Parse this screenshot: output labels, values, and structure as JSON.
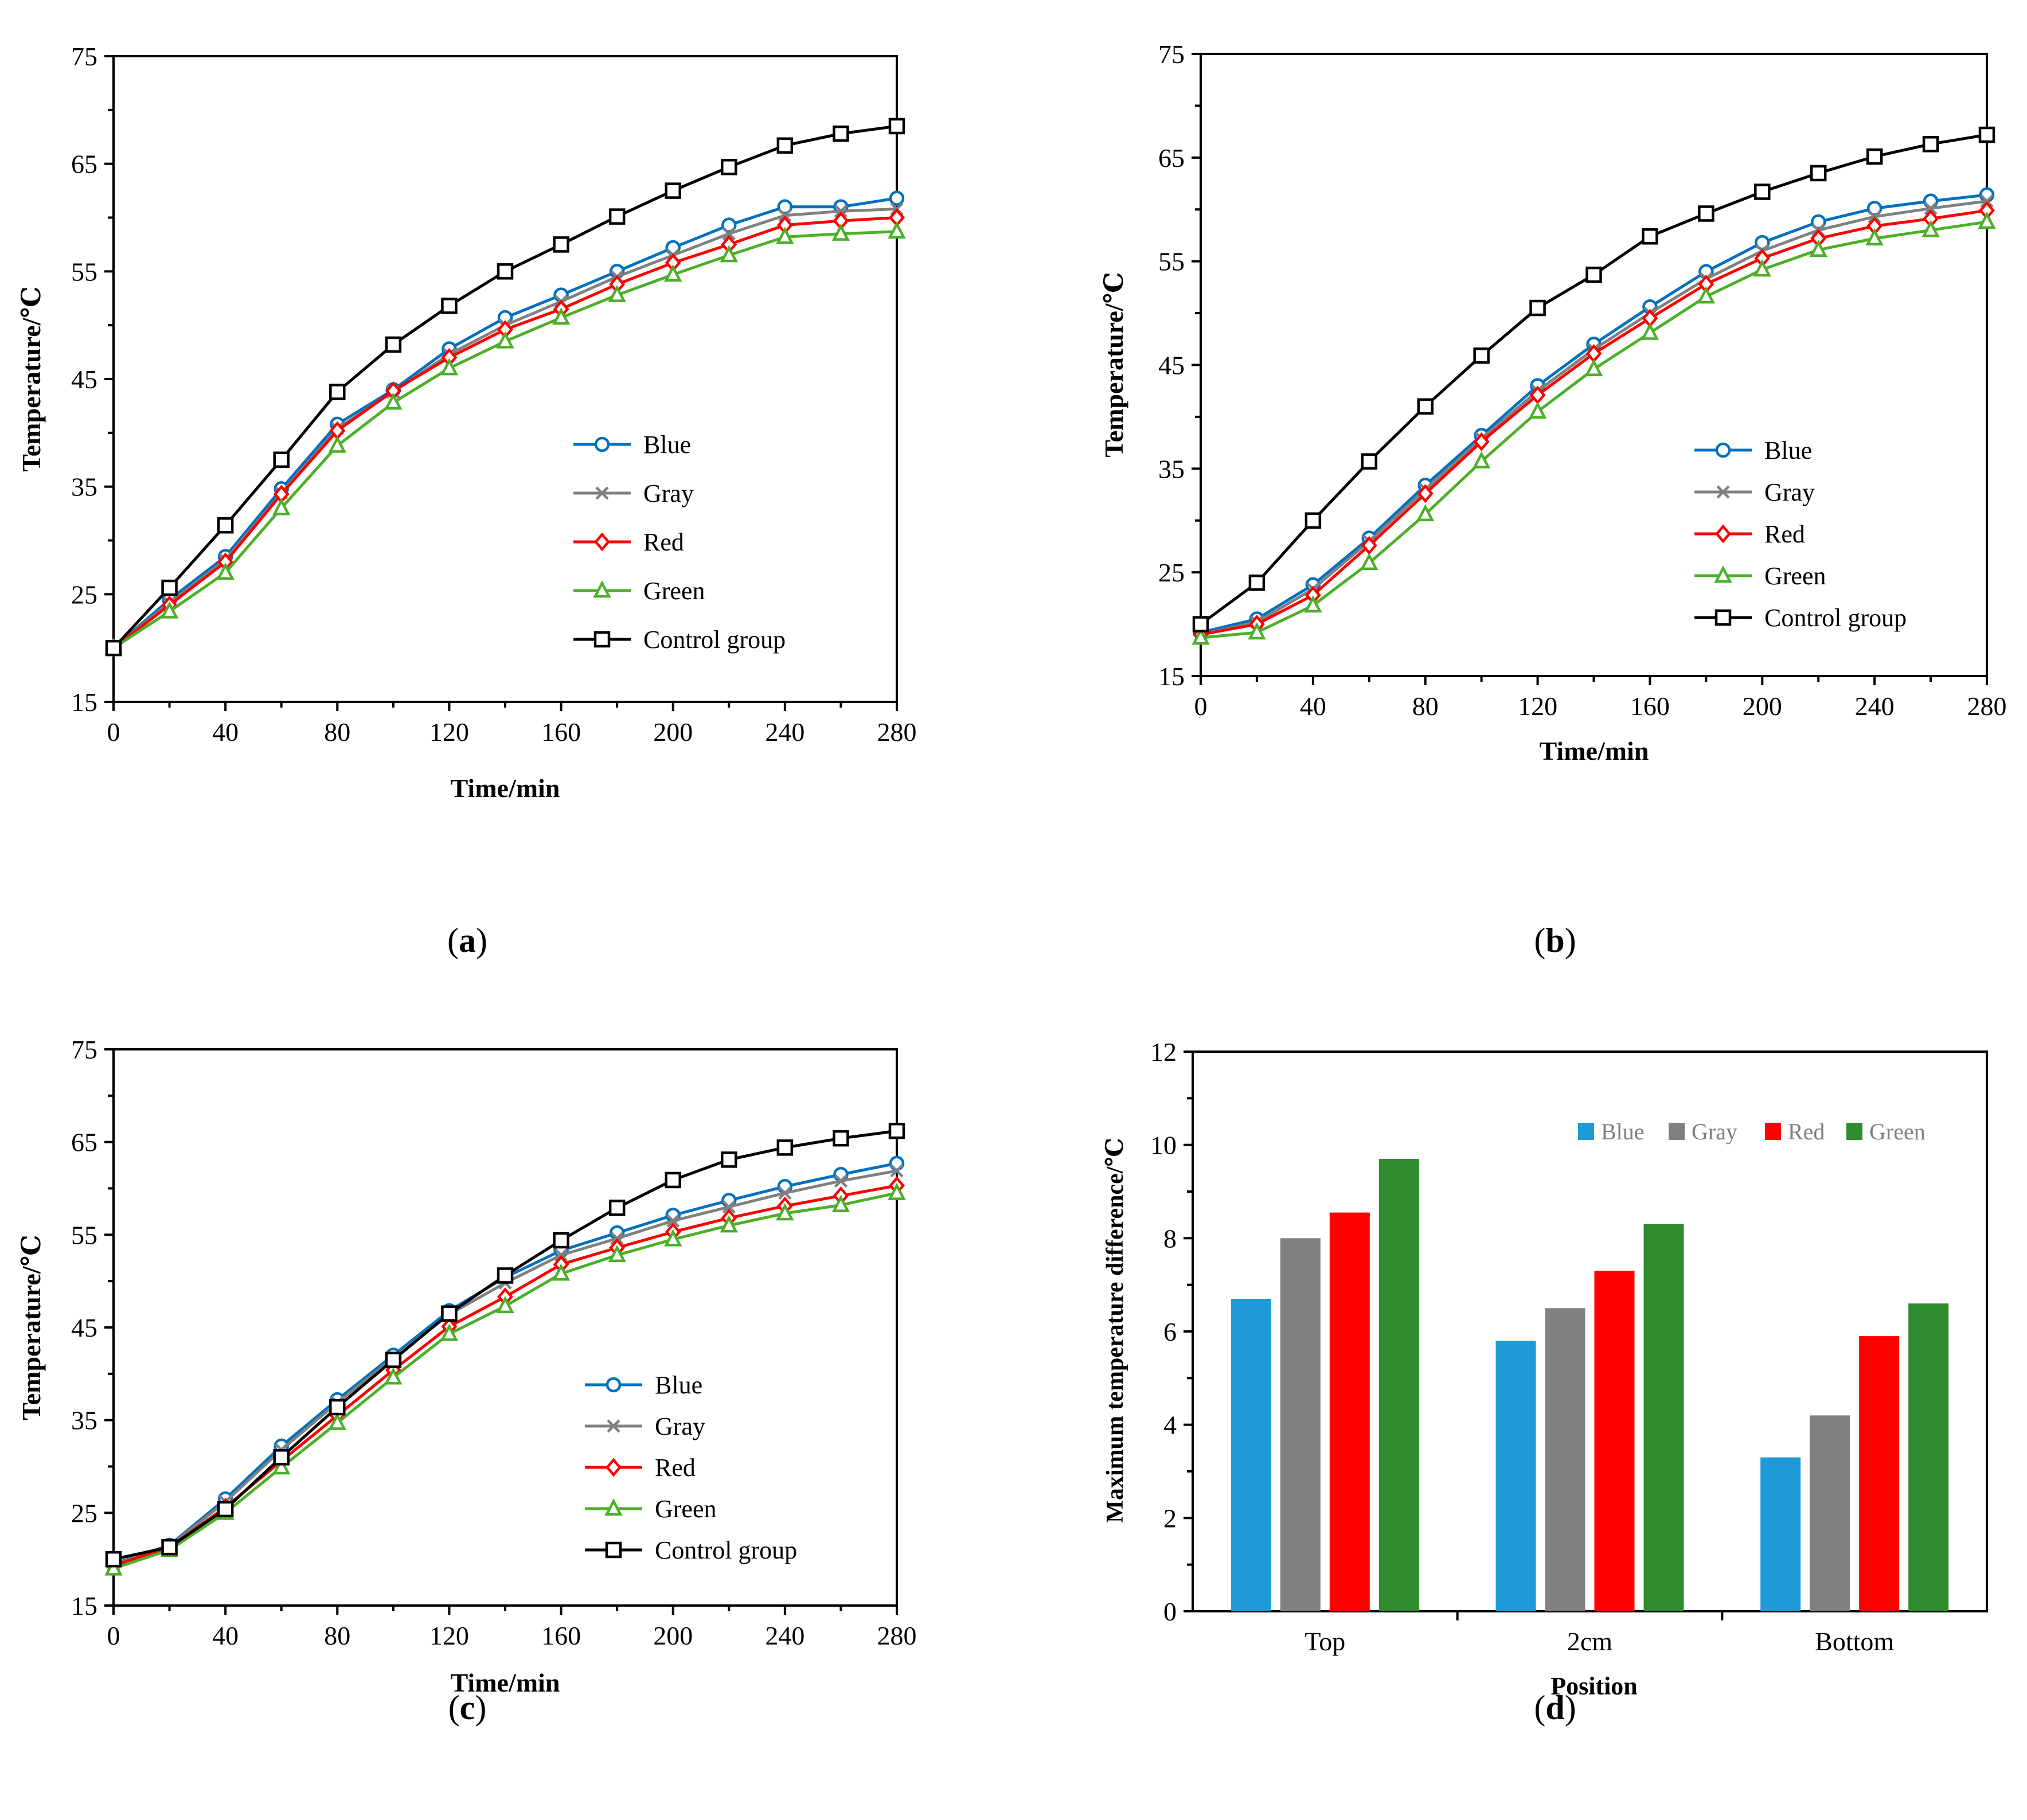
{
  "series_colors": {
    "Blue": "#0070c0",
    "Gray": "#808080",
    "Red": "#ff0000",
    "Green": "#4caf28",
    "Control group": "#000000"
  },
  "bar_colors": {
    "Blue": "#1e9bd7",
    "Gray": "#808080",
    "Red": "#ff0000",
    "Green": "#2e8b2e"
  },
  "chart_data": [
    {
      "id": "a",
      "type": "line",
      "caption": {
        "open": "(",
        "letter": "a",
        "close": ")"
      },
      "xlabel": "Time/min",
      "ylabel": "Temperature/℃",
      "xlim": [
        0,
        280
      ],
      "ylim": [
        15,
        75
      ],
      "xticks": [
        0,
        40,
        80,
        120,
        160,
        200,
        240,
        280
      ],
      "yticks": [
        15,
        25,
        35,
        45,
        55,
        65,
        75
      ],
      "x": [
        0,
        20,
        40,
        60,
        80,
        100,
        120,
        140,
        160,
        180,
        200,
        220,
        240,
        260,
        280
      ],
      "legend": "center-right",
      "series": [
        {
          "name": "Blue",
          "marker": "circle",
          "values": [
            20,
            24.5,
            28.5,
            34.8,
            40.8,
            44,
            47.8,
            50.7,
            52.8,
            55,
            57.2,
            59.3,
            61,
            61,
            61.8
          ]
        },
        {
          "name": "Gray",
          "marker": "x",
          "values": [
            20,
            24.2,
            28.2,
            34.4,
            40.4,
            43.8,
            47.3,
            50,
            52.2,
            54.5,
            56.5,
            58.5,
            60.2,
            60.6,
            60.8
          ]
        },
        {
          "name": "Red",
          "marker": "diamond",
          "values": [
            20,
            24,
            28,
            34.3,
            40.2,
            43.9,
            47,
            49.6,
            51.5,
            53.8,
            55.8,
            57.5,
            59.3,
            59.7,
            60
          ]
        },
        {
          "name": "Green",
          "marker": "triangle",
          "values": [
            20,
            23.4,
            27,
            33,
            38.8,
            42.8,
            46,
            48.5,
            50.7,
            52.8,
            54.7,
            56.5,
            58.2,
            58.5,
            58.7
          ]
        },
        {
          "name": "Control group",
          "marker": "square",
          "values": [
            20,
            25.6,
            31.4,
            37.5,
            43.8,
            48.2,
            51.8,
            55,
            57.5,
            60.1,
            62.5,
            64.7,
            66.7,
            67.8,
            68.5
          ]
        }
      ]
    },
    {
      "id": "b",
      "type": "line",
      "caption": {
        "open": "(",
        "letter": "b",
        "close": ")"
      },
      "xlabel": "Time/min",
      "ylabel": "Temperature/℃",
      "xlim": [
        0,
        280
      ],
      "ylim": [
        15,
        75
      ],
      "xticks": [
        0,
        40,
        80,
        120,
        160,
        200,
        240,
        280
      ],
      "yticks": [
        15,
        25,
        35,
        45,
        55,
        65,
        75
      ],
      "x": [
        0,
        20,
        40,
        60,
        80,
        100,
        120,
        140,
        160,
        180,
        200,
        220,
        240,
        260,
        280
      ],
      "legend": "center-right",
      "series": [
        {
          "name": "Blue",
          "marker": "circle",
          "values": [
            19.2,
            20.5,
            23.8,
            28.3,
            33.4,
            38.2,
            43,
            47,
            50.6,
            54,
            56.8,
            58.8,
            60.1,
            60.8,
            61.4
          ]
        },
        {
          "name": "Gray",
          "marker": "x",
          "values": [
            19,
            20.2,
            23.4,
            28,
            33,
            37.9,
            42.5,
            46.5,
            50,
            53.3,
            56,
            58,
            59.3,
            60.1,
            60.8
          ]
        },
        {
          "name": "Red",
          "marker": "diamond",
          "values": [
            19,
            20,
            22.8,
            27.6,
            32.6,
            37.6,
            42.1,
            46.1,
            49.5,
            52.8,
            55.3,
            57.2,
            58.4,
            59.1,
            59.9
          ]
        },
        {
          "name": "Green",
          "marker": "triangle",
          "values": [
            18.7,
            19.2,
            21.8,
            25.9,
            30.6,
            35.7,
            40.5,
            44.6,
            48.1,
            51.6,
            54.2,
            56.1,
            57.2,
            58,
            58.8
          ]
        },
        {
          "name": "Control group",
          "marker": "square",
          "values": [
            20,
            24,
            30,
            35.7,
            41,
            45.9,
            50.5,
            53.7,
            57.4,
            59.6,
            61.7,
            63.5,
            65.1,
            66.3,
            67.2
          ]
        }
      ]
    },
    {
      "id": "c",
      "type": "line",
      "caption": {
        "open": "(",
        "letter": "c",
        "close": ")"
      },
      "xlabel": "Time/min",
      "ylabel": "Temperature/℃",
      "xlim": [
        0,
        280
      ],
      "ylim": [
        15,
        75
      ],
      "xticks": [
        0,
        40,
        80,
        120,
        160,
        200,
        240,
        280
      ],
      "yticks": [
        15,
        25,
        35,
        45,
        55,
        65,
        75
      ],
      "x": [
        0,
        20,
        40,
        60,
        80,
        100,
        120,
        140,
        160,
        180,
        200,
        220,
        240,
        260,
        280
      ],
      "legend": "center-right",
      "series": [
        {
          "name": "Blue",
          "marker": "circle",
          "values": [
            19.5,
            21.5,
            26.5,
            32.2,
            37.2,
            42,
            46.8,
            50.4,
            53.3,
            55.2,
            57.1,
            58.7,
            60.2,
            61.5,
            62.7
          ]
        },
        {
          "name": "Gray",
          "marker": "x",
          "values": [
            19.4,
            21.4,
            26.2,
            31.8,
            36.9,
            41.7,
            46.4,
            49.8,
            52.8,
            54.6,
            56.5,
            58,
            59.5,
            60.8,
            61.9
          ]
        },
        {
          "name": "Red",
          "marker": "diamond",
          "values": [
            19.3,
            21.3,
            25.6,
            30.6,
            35.5,
            40.4,
            45.1,
            48.3,
            51.8,
            53.6,
            55.3,
            56.8,
            58.1,
            59.2,
            60.3
          ]
        },
        {
          "name": "Green",
          "marker": "triangle",
          "values": [
            19,
            21,
            25,
            29.9,
            34.7,
            39.6,
            44.3,
            47.3,
            50.8,
            52.8,
            54.5,
            56,
            57.3,
            58.2,
            59.5
          ]
        },
        {
          "name": "Control group",
          "marker": "square",
          "values": [
            20,
            21.3,
            25.4,
            31,
            36.4,
            41.5,
            46.5,
            50.6,
            54.4,
            57.9,
            60.9,
            63.1,
            64.4,
            65.4,
            66.2
          ]
        }
      ]
    },
    {
      "id": "d",
      "type": "bar",
      "caption": {
        "open": "(",
        "letter": "d",
        "close": ")"
      },
      "xlabel": "Position",
      "ylabel": "Maximum temperature difference/℃",
      "ylim": [
        0,
        12
      ],
      "yticks": [
        0,
        2,
        4,
        6,
        8,
        10,
        12
      ],
      "categories": [
        "Top",
        "2cm",
        "Bottom"
      ],
      "legend": "top-right",
      "series": [
        {
          "name": "Blue",
          "values": [
            6.7,
            5.8,
            3.3
          ]
        },
        {
          "name": "Gray",
          "values": [
            8.0,
            6.5,
            4.2
          ]
        },
        {
          "name": "Red",
          "values": [
            8.55,
            7.3,
            5.9
          ]
        },
        {
          "name": "Green",
          "values": [
            9.7,
            8.3,
            6.6
          ]
        }
      ]
    }
  ]
}
